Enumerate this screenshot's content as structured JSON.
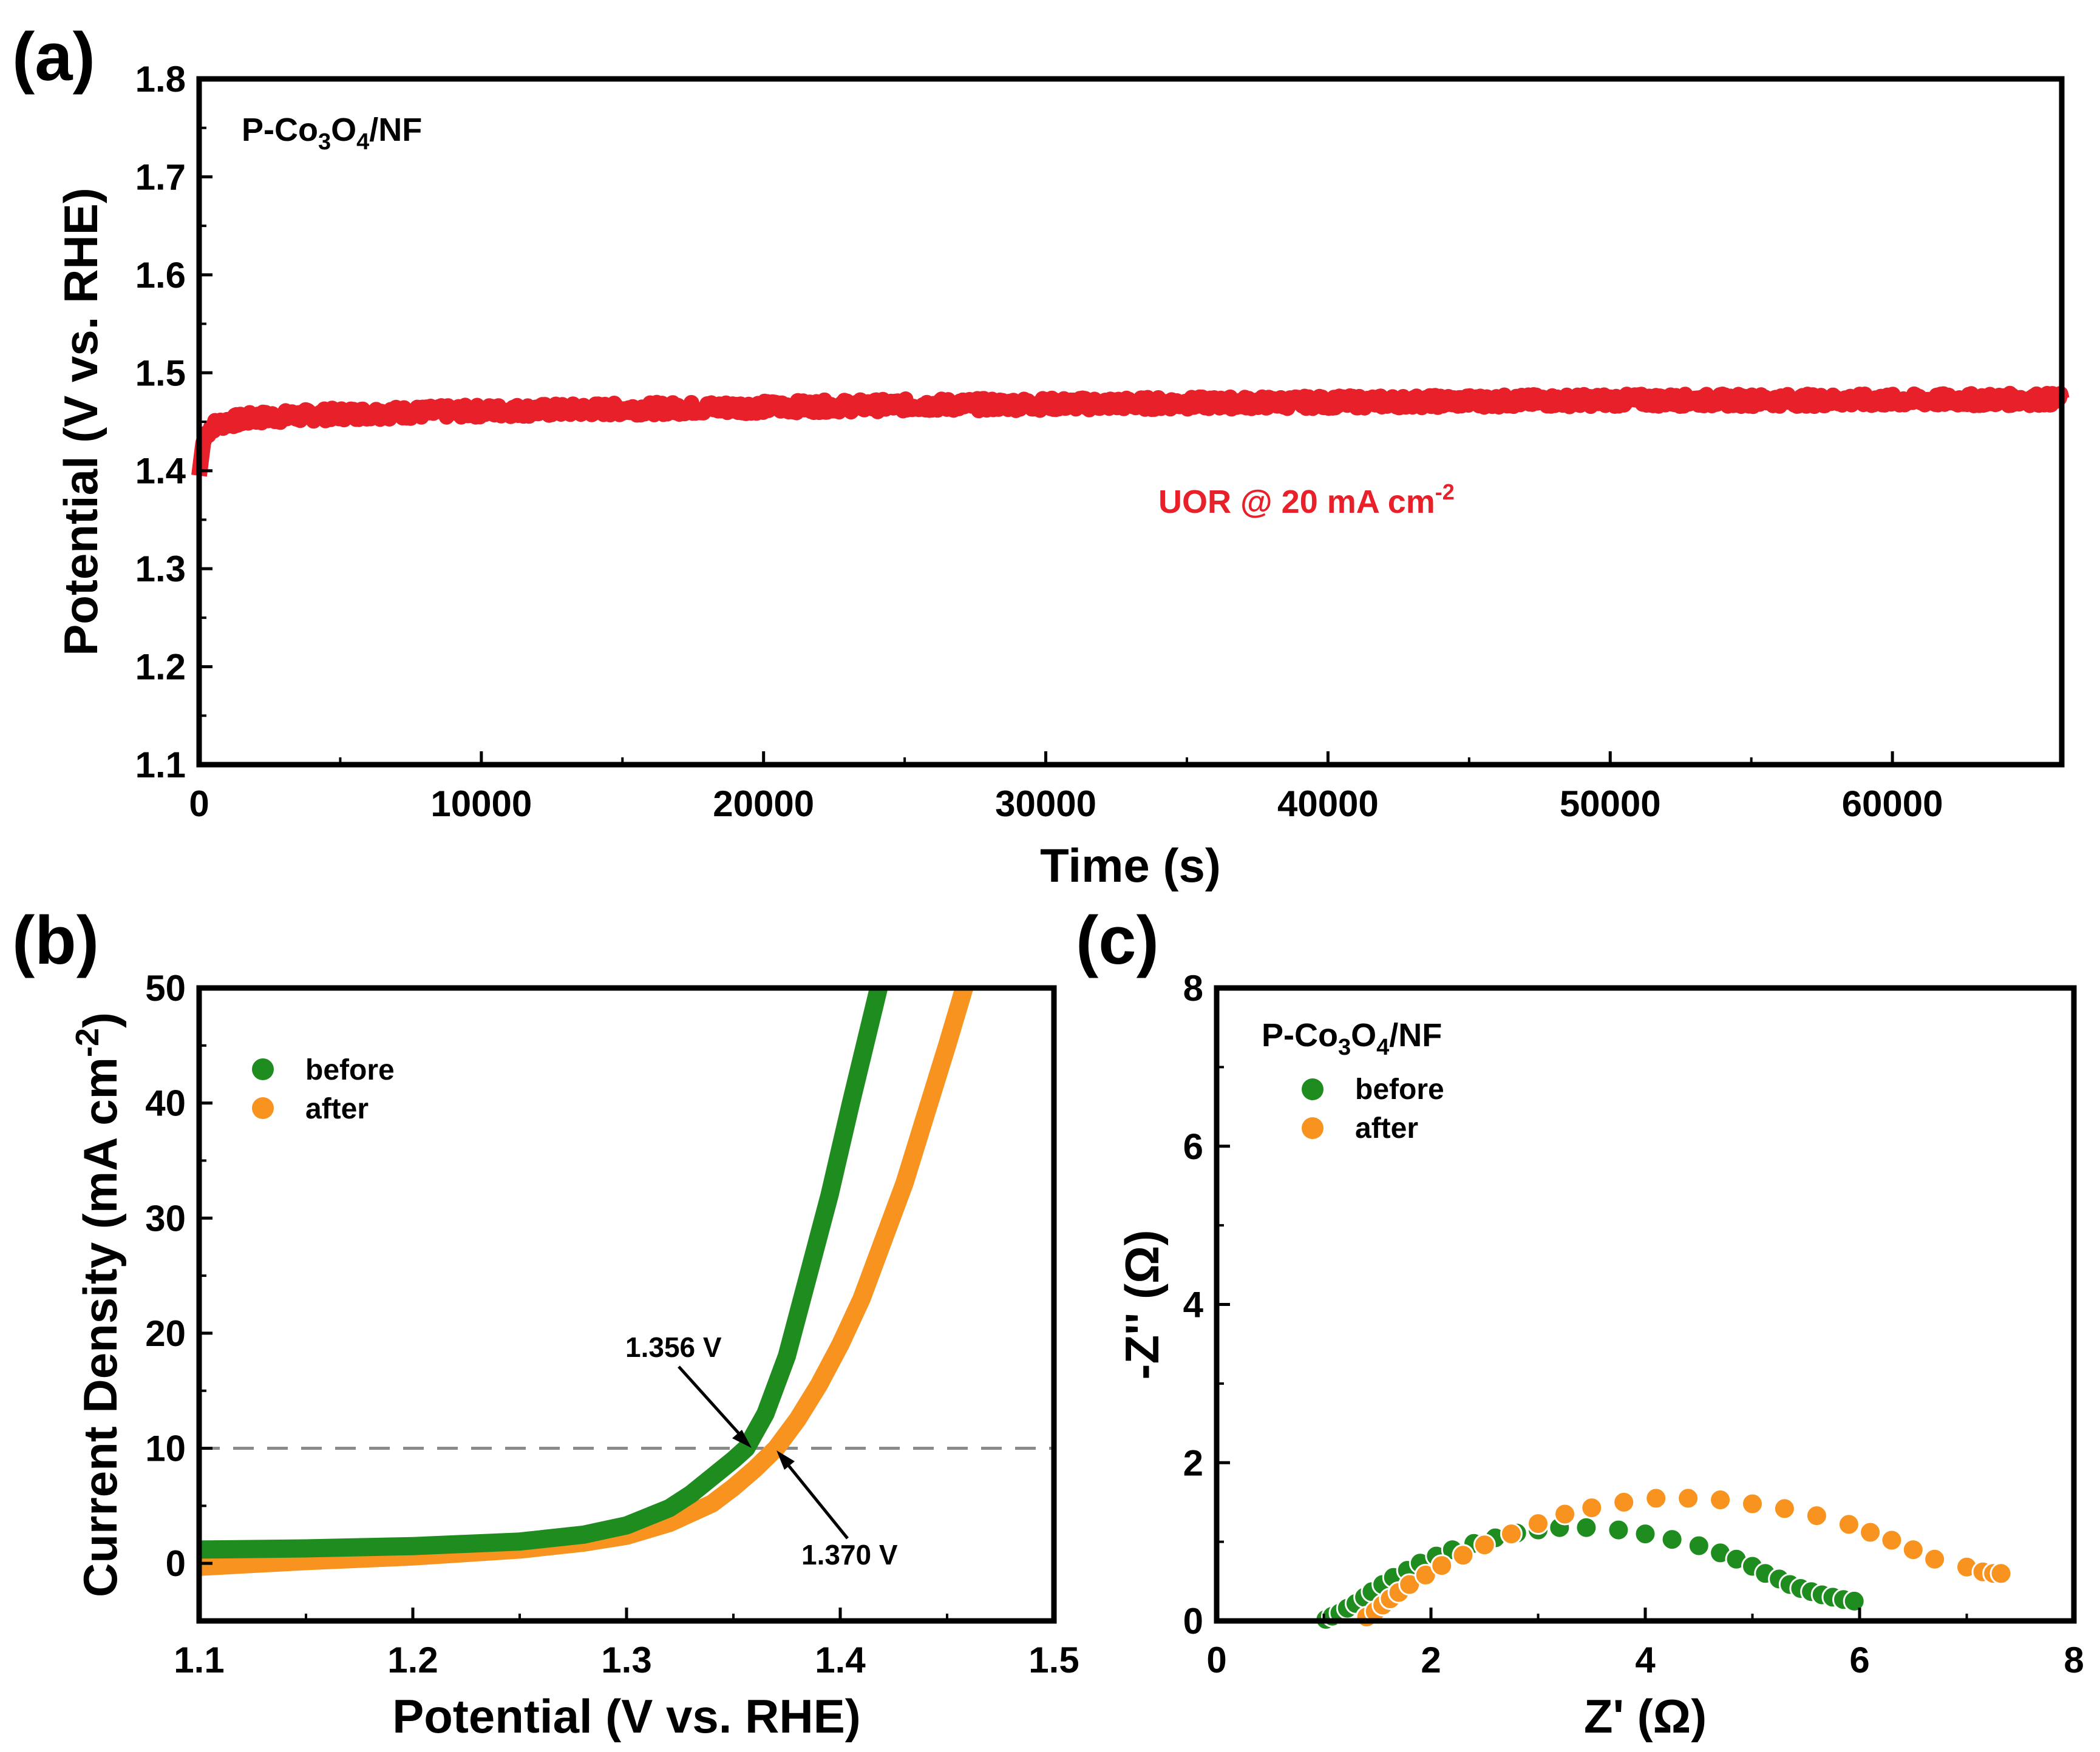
{
  "chart_data": [
    {
      "panel": "(a)",
      "type": "line",
      "title": "",
      "xlabel": "Time (s)",
      "ylabel": "Potential (V vs. RHE)",
      "xlim": [
        0,
        66000
      ],
      "ylim": [
        1.1,
        1.8
      ],
      "xticks": [
        0,
        10000,
        20000,
        30000,
        40000,
        50000,
        60000
      ],
      "yticks": [
        1.1,
        1.2,
        1.3,
        1.4,
        1.5,
        1.6,
        1.7,
        1.8
      ],
      "annotations": {
        "sample_main": "P-Co",
        "sample_sub1": "3",
        "sample_mid": "O",
        "sample_sub2": "4",
        "sample_tail": "/NF",
        "condition_main": "UOR @ 20 mA cm",
        "condition_sup": "-2"
      },
      "series": [
        {
          "name": "P-Co3O4/NF",
          "color": "#e8202a",
          "x": [
            0,
            150,
            400,
            1000,
            2000,
            5000,
            10000,
            15000,
            20000,
            25000,
            30000,
            35000,
            40000,
            45000,
            50000,
            55000,
            60000,
            66000
          ],
          "y": [
            1.395,
            1.43,
            1.445,
            1.45,
            1.454,
            1.458,
            1.461,
            1.463,
            1.465,
            1.467,
            1.468,
            1.469,
            1.47,
            1.471,
            1.472,
            1.472,
            1.472,
            1.473
          ]
        }
      ]
    },
    {
      "panel": "(b)",
      "type": "line",
      "title": "",
      "xlabel": "Potential (V vs. RHE)",
      "ylabel_main": "Current Density (mA cm",
      "ylabel_sup": "-2",
      "ylabel_close": ")",
      "xlim": [
        1.1,
        1.5
      ],
      "ylim": [
        -5,
        50
      ],
      "xticks": [
        1.1,
        1.2,
        1.3,
        1.4,
        1.5
      ],
      "yticks": [
        0,
        10,
        20,
        30,
        40,
        50
      ],
      "reference_line_y": 10,
      "annotations": [
        "1.356 V",
        "1.370 V"
      ],
      "legend": [
        "before",
        "after"
      ],
      "series": [
        {
          "name": "before",
          "color": "#1f8c1f",
          "x": [
            1.1,
            1.15,
            1.2,
            1.25,
            1.28,
            1.3,
            1.32,
            1.33,
            1.34,
            1.35,
            1.356,
            1.365,
            1.375,
            1.385,
            1.395,
            1.405,
            1.418
          ],
          "y": [
            1.2,
            1.3,
            1.5,
            1.9,
            2.5,
            3.3,
            4.8,
            6.0,
            7.5,
            9.0,
            10,
            13,
            18,
            25,
            32,
            40,
            50
          ]
        },
        {
          "name": "after",
          "color": "#f7931e",
          "x": [
            1.1,
            1.15,
            1.2,
            1.25,
            1.28,
            1.3,
            1.32,
            1.34,
            1.35,
            1.36,
            1.37,
            1.38,
            1.39,
            1.4,
            1.41,
            1.42,
            1.43,
            1.44,
            1.45,
            1.458
          ],
          "y": [
            -0.3,
            0.2,
            0.6,
            1.2,
            1.8,
            2.4,
            3.5,
            5.2,
            6.6,
            8.2,
            10,
            12.5,
            15.5,
            19,
            23,
            28,
            33,
            39,
            45,
            50
          ]
        }
      ]
    },
    {
      "panel": "(c)",
      "type": "scatter",
      "title": "",
      "xlabel": "Z' (Ω)",
      "ylabel": "-Z'' (Ω)",
      "xlim": [
        0,
        8
      ],
      "ylim": [
        0,
        8
      ],
      "xticks": [
        0,
        2,
        4,
        6,
        8
      ],
      "yticks": [
        0,
        2,
        4,
        6,
        8
      ],
      "annotations": {
        "sample_main": "P-Co",
        "sample_sub1": "3",
        "sample_mid": "O",
        "sample_sub2": "4",
        "sample_tail": "/NF"
      },
      "legend": [
        "before",
        "after"
      ],
      "series": [
        {
          "name": "before",
          "color": "#1f8c1f",
          "x": [
            1.02,
            1.08,
            1.15,
            1.22,
            1.3,
            1.38,
            1.45,
            1.55,
            1.65,
            1.78,
            1.9,
            2.05,
            2.2,
            2.4,
            2.6,
            2.8,
            3.0,
            3.2,
            3.45,
            3.75,
            4.0,
            4.25,
            4.5,
            4.7,
            4.85,
            5.0,
            5.12,
            5.25,
            5.35,
            5.45,
            5.55,
            5.65,
            5.75,
            5.85,
            5.95
          ],
          "y": [
            0.02,
            0.06,
            0.1,
            0.16,
            0.22,
            0.3,
            0.37,
            0.46,
            0.55,
            0.64,
            0.73,
            0.82,
            0.9,
            0.98,
            1.05,
            1.11,
            1.15,
            1.18,
            1.18,
            1.15,
            1.1,
            1.03,
            0.95,
            0.86,
            0.78,
            0.69,
            0.6,
            0.53,
            0.46,
            0.41,
            0.37,
            0.33,
            0.3,
            0.27,
            0.25
          ]
        },
        {
          "name": "after",
          "color": "#f7931e",
          "x": [
            1.4,
            1.48,
            1.55,
            1.62,
            1.7,
            1.8,
            1.95,
            2.1,
            2.3,
            2.5,
            2.75,
            3.0,
            3.25,
            3.5,
            3.8,
            4.1,
            4.4,
            4.7,
            5.0,
            5.3,
            5.6,
            5.9,
            6.1,
            6.3,
            6.5,
            6.7,
            7.0,
            7.15,
            7.25,
            7.32
          ],
          "y": [
            0.05,
            0.12,
            0.2,
            0.28,
            0.36,
            0.46,
            0.58,
            0.7,
            0.83,
            0.96,
            1.1,
            1.23,
            1.35,
            1.43,
            1.5,
            1.55,
            1.55,
            1.53,
            1.48,
            1.42,
            1.33,
            1.22,
            1.12,
            1.02,
            0.9,
            0.78,
            0.68,
            0.62,
            0.6,
            0.6
          ]
        }
      ]
    }
  ]
}
